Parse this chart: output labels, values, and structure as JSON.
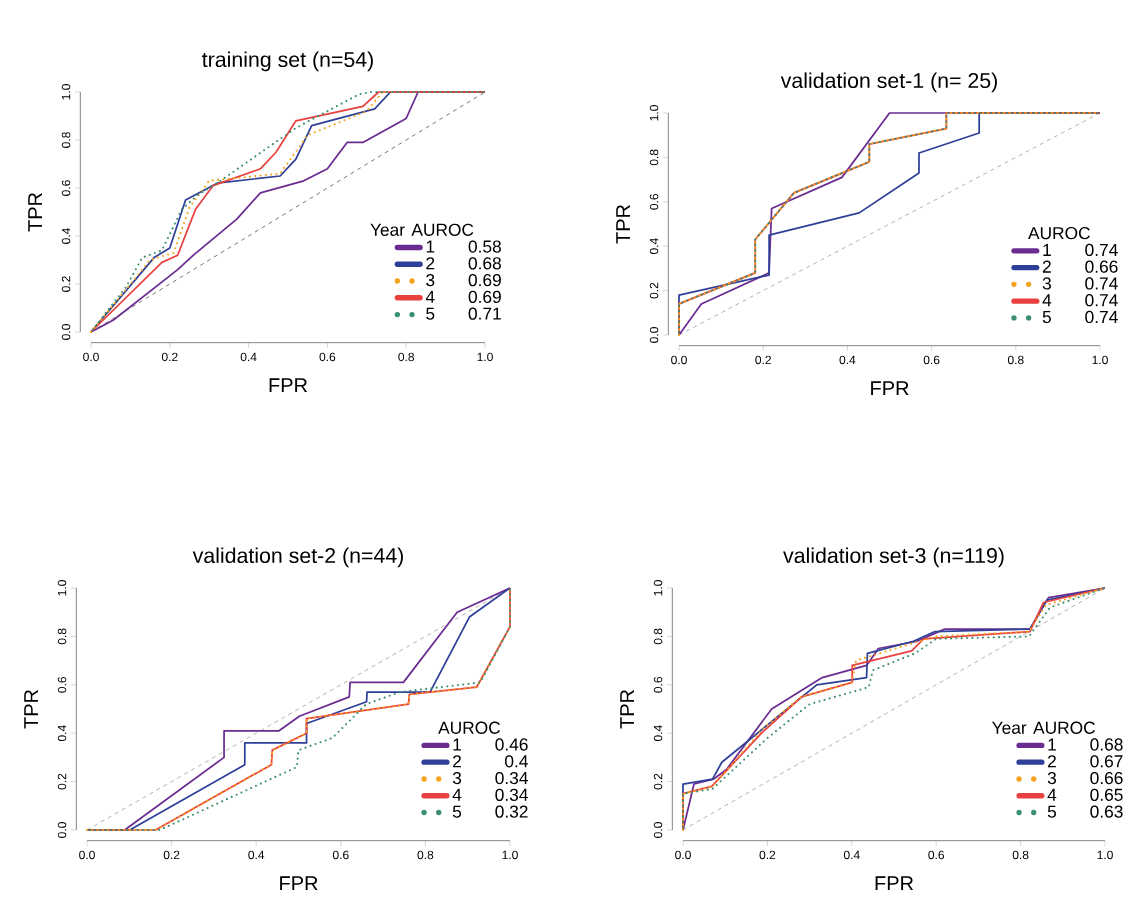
{
  "chart_data": [
    {
      "type": "line",
      "title": "training set (n=54)",
      "xlabel": "FPR",
      "ylabel": "TPR",
      "legend_title": "Year",
      "legend": "bottom right",
      "annotations": [
        "AUROC",
        "0.58",
        "0.68",
        "0.69",
        "0.69",
        "0.71"
      ],
      "xlim": [
        0,
        1
      ],
      "ylim": [
        0,
        1
      ],
      "xticks": [
        {
          "value": 0,
          "label": "0.0"
        },
        {
          "value": 0.2,
          "label": "0.2"
        },
        {
          "value": 0.4,
          "label": "0.4"
        },
        {
          "value": 0.6,
          "label": "0.6"
        },
        {
          "value": 0.8,
          "label": "0.8"
        },
        {
          "value": 1,
          "label": "1.0"
        }
      ],
      "yticks": [
        {
          "value": 0,
          "label": "0.0"
        },
        {
          "value": 0.2,
          "label": "0.2"
        },
        {
          "value": 0.4,
          "label": "0.4"
        },
        {
          "value": 0.6,
          "label": "0.6"
        },
        {
          "value": 0.8,
          "label": "0.8"
        },
        {
          "value": 1,
          "label": "1.0"
        }
      ],
      "series": [
        {
          "name": "1",
          "color": "#6a2c91",
          "line_style": "solid",
          "x": [
            0,
            0.057,
            0.22,
            0.26,
            0.37,
            0.43,
            0.54,
            0.6,
            0.65,
            0.69,
            0.8,
            0.83,
            1
          ],
          "values": [
            0,
            0.05,
            0.26,
            0.32,
            0.47,
            0.58,
            0.63,
            0.68,
            0.79,
            0.79,
            0.89,
            1,
            1
          ]
        },
        {
          "name": "2",
          "color": "#2e3f98",
          "line_style": "solid",
          "x": [
            0,
            0.16,
            0.2,
            0.24,
            0.32,
            0.48,
            0.52,
            0.56,
            0.72,
            0.76,
            1
          ],
          "values": [
            0,
            0.31,
            0.35,
            0.55,
            0.62,
            0.65,
            0.72,
            0.86,
            0.93,
            1,
            1
          ]
        },
        {
          "name": "3",
          "color": "#f5a31a",
          "line_style": "dotted",
          "x": [
            0,
            0.15,
            0.21,
            0.25,
            0.3,
            0.48,
            0.55,
            0.7,
            0.74,
            1
          ],
          "values": [
            0,
            0.3,
            0.33,
            0.52,
            0.63,
            0.66,
            0.82,
            0.92,
            1,
            1
          ]
        },
        {
          "name": "4",
          "color": "#e8413f",
          "line_style": "solid",
          "x": [
            0,
            0.18,
            0.22,
            0.265,
            0.31,
            0.43,
            0.47,
            0.52,
            0.69,
            0.73,
            1
          ],
          "values": [
            0,
            0.29,
            0.32,
            0.51,
            0.61,
            0.68,
            0.75,
            0.88,
            0.94,
            1,
            1
          ]
        },
        {
          "name": "5",
          "color": "#3a8f6e",
          "line_style": "dotted",
          "x": [
            0,
            0.09,
            0.13,
            0.18,
            0.23,
            0.27,
            0.32,
            0.52,
            0.68,
            0.71,
            1
          ],
          "values": [
            0,
            0.19,
            0.31,
            0.34,
            0.51,
            0.57,
            0.62,
            0.85,
            0.99,
            1,
            1
          ]
        },
        {
          "color": "#333333",
          "line_style": "dashed",
          "x": [
            0,
            1
          ],
          "values": [
            0,
            1
          ]
        }
      ]
    },
    {
      "type": "line",
      "title": "validation set-1 (n= 25)",
      "xlabel": "FPR",
      "ylabel": "TPR",
      "legend": "bottom right",
      "annotations": [
        "AUROC",
        "0.74",
        "0.66",
        "0.74",
        "0.74",
        "0.74"
      ],
      "xlim": [
        0,
        1
      ],
      "ylim": [
        0,
        1
      ],
      "xticks": [
        {
          "value": 0,
          "label": "0.0"
        },
        {
          "value": 0.2,
          "label": "0.2"
        },
        {
          "value": 0.4,
          "label": "0.4"
        },
        {
          "value": 0.6,
          "label": "0.6"
        },
        {
          "value": 0.8,
          "label": "0.8"
        },
        {
          "value": 1,
          "label": "1.0"
        }
      ],
      "yticks": [
        {
          "value": 0,
          "label": "0.0"
        },
        {
          "value": 0.2,
          "label": "0.2"
        },
        {
          "value": 0.4,
          "label": "0.4"
        },
        {
          "value": 0.6,
          "label": "0.6"
        },
        {
          "value": 0.8,
          "label": "0.8"
        },
        {
          "value": 1,
          "label": "1.0"
        }
      ],
      "series": [
        {
          "name": "1",
          "color": "#6a2c91",
          "line_style": "solid",
          "x": [
            0,
            0.053,
            0.214,
            0.22,
            0.387,
            0.5,
            1
          ],
          "values": [
            0,
            0.14,
            0.28,
            0.57,
            0.71,
            1,
            1
          ]
        },
        {
          "name": "2",
          "color": "#2e3f98",
          "line_style": "solid",
          "x": [
            0,
            0,
            0.214,
            0.214,
            0.428,
            0.57,
            0.57,
            0.713,
            0.713,
            1
          ],
          "values": [
            0,
            0.18,
            0.27,
            0.45,
            0.55,
            0.73,
            0.82,
            0.91,
            1,
            1
          ]
        },
        {
          "name": "3",
          "color": "#f5a31a",
          "line_style": "dotted",
          "x": [
            0,
            0,
            0.181,
            0.181,
            0.273,
            0.452,
            0.452,
            0.635,
            0.635,
            1
          ],
          "values": [
            0,
            0.14,
            0.28,
            0.43,
            0.64,
            0.78,
            0.86,
            0.93,
            1,
            1
          ]
        },
        {
          "name": "4",
          "color": "#e8413f",
          "line_style": "solid",
          "x": [
            0,
            0,
            0.181,
            0.181,
            0.273,
            0.452,
            0.452,
            0.635,
            0.635,
            1
          ],
          "values": [
            0,
            0.14,
            0.28,
            0.43,
            0.64,
            0.78,
            0.86,
            0.93,
            1,
            1
          ]
        },
        {
          "name": "5",
          "color": "#3a8f6e",
          "line_style": "dotted",
          "x": [
            0,
            0,
            0.181,
            0.181,
            0.273,
            0.452,
            0.452,
            0.635,
            0.635,
            1
          ],
          "values": [
            0,
            0.14,
            0.28,
            0.43,
            0.64,
            0.78,
            0.86,
            0.93,
            1,
            1
          ]
        },
        {
          "color": "#888888",
          "line_style": "dashed",
          "x": [
            0,
            1
          ],
          "values": [
            0,
            1
          ]
        }
      ]
    },
    {
      "type": "line",
      "title": "validation set-2 (n=44)",
      "xlabel": "FPR",
      "ylabel": "TPR",
      "legend": "bottom right",
      "annotations": [
        "AUROC",
        "0.46",
        "0.4",
        "0.34",
        "0.34",
        "0.32"
      ],
      "xlim": [
        0,
        1
      ],
      "ylim": [
        0,
        1
      ],
      "xticks": [
        {
          "value": 0,
          "label": "0.0"
        },
        {
          "value": 0.2,
          "label": "0.2"
        },
        {
          "value": 0.4,
          "label": "0.4"
        },
        {
          "value": 0.6,
          "label": "0.6"
        },
        {
          "value": 0.8,
          "label": "0.8"
        },
        {
          "value": 1,
          "label": "1.0"
        }
      ],
      "yticks": [
        {
          "value": 0,
          "label": "0.0"
        },
        {
          "value": 0.2,
          "label": "0.2"
        },
        {
          "value": 0.4,
          "label": "0.4"
        },
        {
          "value": 0.6,
          "label": "0.6"
        },
        {
          "value": 0.8,
          "label": "0.8"
        },
        {
          "value": 1,
          "label": "1.0"
        }
      ],
      "series": [
        {
          "name": "1",
          "color": "#6a2c91",
          "line_style": "solid",
          "x": [
            0,
            0.089,
            0.324,
            0.324,
            0.454,
            0.502,
            0.62,
            0.622,
            0.748,
            0.875,
            1
          ],
          "values": [
            0,
            0,
            0.3,
            0.41,
            0.41,
            0.47,
            0.55,
            0.61,
            0.61,
            0.9,
            1
          ]
        },
        {
          "name": "2",
          "color": "#2e3f98",
          "line_style": "solid",
          "x": [
            0,
            0.101,
            0.373,
            0.373,
            0.519,
            0.519,
            0.661,
            0.662,
            0.811,
            0.904,
            1
          ],
          "values": [
            0,
            0,
            0.27,
            0.36,
            0.36,
            0.44,
            0.53,
            0.57,
            0.57,
            0.88,
            1
          ]
        },
        {
          "name": "3",
          "color": "#f5a31a",
          "line_style": "dotted",
          "x": [
            0,
            0.162,
            0.436,
            0.438,
            0.519,
            0.519,
            0.76,
            0.762,
            0.921,
            1,
            1
          ],
          "values": [
            0,
            0,
            0.27,
            0.33,
            0.4,
            0.46,
            0.52,
            0.56,
            0.59,
            0.84,
            1
          ]
        },
        {
          "name": "4",
          "color": "#e8413f",
          "line_style": "solid",
          "x": [
            0,
            0.162,
            0.436,
            0.438,
            0.519,
            0.519,
            0.76,
            0.762,
            0.921,
            1,
            1
          ],
          "values": [
            0,
            0,
            0.27,
            0.33,
            0.4,
            0.46,
            0.52,
            0.56,
            0.59,
            0.84,
            1
          ]
        },
        {
          "name": "5",
          "color": "#3a8f6e",
          "line_style": "dotted",
          "x": [
            0,
            0.172,
            0.496,
            0.5,
            0.58,
            0.66,
            0.74,
            0.93,
            1,
            1
          ],
          "values": [
            0,
            0,
            0.26,
            0.33,
            0.38,
            0.52,
            0.57,
            0.61,
            0.84,
            1
          ]
        },
        {
          "color": "#888888",
          "line_style": "dashed",
          "x": [
            0,
            1
          ],
          "values": [
            0,
            1
          ]
        }
      ]
    },
    {
      "type": "line",
      "title": "validation set-3 (n=119)",
      "xlabel": "FPR",
      "ylabel": "TPR",
      "legend_title": "Year",
      "legend": "bottom right",
      "annotations": [
        "AUROC",
        "0.68",
        "0.67",
        "0.66",
        "0.65",
        "0.63"
      ],
      "xlim": [
        0,
        1
      ],
      "ylim": [
        0,
        1
      ],
      "xticks": [
        {
          "value": 0,
          "label": "0.0"
        },
        {
          "value": 0.2,
          "label": "0.2"
        },
        {
          "value": 0.4,
          "label": "0.4"
        },
        {
          "value": 0.6,
          "label": "0.6"
        },
        {
          "value": 0.8,
          "label": "0.8"
        },
        {
          "value": 1,
          "label": "1.0"
        }
      ],
      "yticks": [
        {
          "value": 0,
          "label": "0.0"
        },
        {
          "value": 0.2,
          "label": "0.2"
        },
        {
          "value": 0.4,
          "label": "0.4"
        },
        {
          "value": 0.6,
          "label": "0.6"
        },
        {
          "value": 0.8,
          "label": "0.8"
        },
        {
          "value": 1,
          "label": "1.0"
        }
      ],
      "series": [
        {
          "name": "1",
          "color": "#6a2c91",
          "line_style": "solid",
          "x": [
            0,
            0.026,
            0.072,
            0.103,
            0.21,
            0.33,
            0.435,
            0.463,
            0.554,
            0.62,
            0.822,
            0.866,
            1
          ],
          "values": [
            0,
            0.19,
            0.21,
            0.25,
            0.5,
            0.63,
            0.68,
            0.75,
            0.78,
            0.83,
            0.83,
            0.96,
            1
          ]
        },
        {
          "name": "2",
          "color": "#2e3f98",
          "line_style": "solid",
          "x": [
            0,
            0,
            0.07,
            0.092,
            0.317,
            0.435,
            0.437,
            0.546,
            0.597,
            0.822,
            0.862,
            1
          ],
          "values": [
            0,
            0.19,
            0.21,
            0.28,
            0.6,
            0.63,
            0.73,
            0.78,
            0.82,
            0.83,
            0.95,
            1
          ]
        },
        {
          "name": "3",
          "color": "#f5a31a",
          "line_style": "dotted",
          "x": [
            0,
            0,
            0.07,
            0.19,
            0.28,
            0.4,
            0.41,
            0.56,
            0.6,
            0.82,
            0.86,
            1
          ],
          "values": [
            0,
            0.15,
            0.18,
            0.42,
            0.55,
            0.61,
            0.7,
            0.78,
            0.8,
            0.82,
            0.93,
            1
          ]
        },
        {
          "name": "4",
          "color": "#e8413f",
          "line_style": "solid",
          "x": [
            0,
            0,
            0.068,
            0.186,
            0.281,
            0.401,
            0.401,
            0.542,
            0.57,
            0.822,
            0.854,
            1
          ],
          "values": [
            0,
            0.15,
            0.18,
            0.4,
            0.55,
            0.61,
            0.68,
            0.74,
            0.79,
            0.82,
            0.94,
            1
          ]
        },
        {
          "name": "5",
          "color": "#3a8f6e",
          "line_style": "dotted",
          "x": [
            0,
            0,
            0.07,
            0.2,
            0.3,
            0.44,
            0.45,
            0.55,
            0.6,
            0.82,
            0.87,
            1
          ],
          "values": [
            0,
            0.15,
            0.17,
            0.38,
            0.52,
            0.59,
            0.66,
            0.73,
            0.79,
            0.8,
            0.92,
            1
          ]
        },
        {
          "color": "#888888",
          "line_style": "dashed",
          "x": [
            0,
            1
          ],
          "values": [
            0,
            1
          ]
        }
      ]
    }
  ]
}
